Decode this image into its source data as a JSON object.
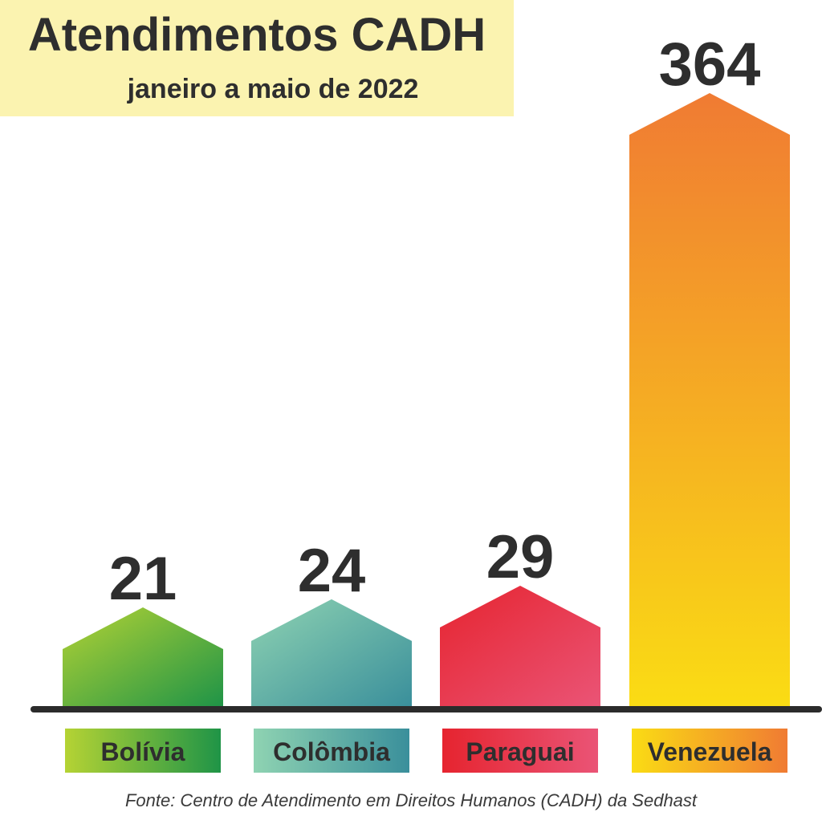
{
  "chart_data": {
    "type": "bar",
    "title": "Atendimentos CADH",
    "subtitle": "janeiro a maio de 2022",
    "categories": [
      "Bolívia",
      "Colômbia",
      "Paraguai",
      "Venezuela"
    ],
    "values": [
      21,
      24,
      29,
      364
    ],
    "value_labels": [
      "21",
      "24",
      "29",
      "364"
    ],
    "colors": [
      {
        "top": "#b5d334",
        "bottom": "#1f9447"
      },
      {
        "top": "#8fd3b2",
        "bottom": "#3a8f9b"
      },
      {
        "top": "#e6242f",
        "bottom": "#ea5476"
      },
      {
        "top": "#f07b33",
        "bottom": "#fadc14"
      }
    ],
    "source": "Fonte: Centro de Atendimento em Direitos Humanos (CADH) da Sedhast"
  }
}
